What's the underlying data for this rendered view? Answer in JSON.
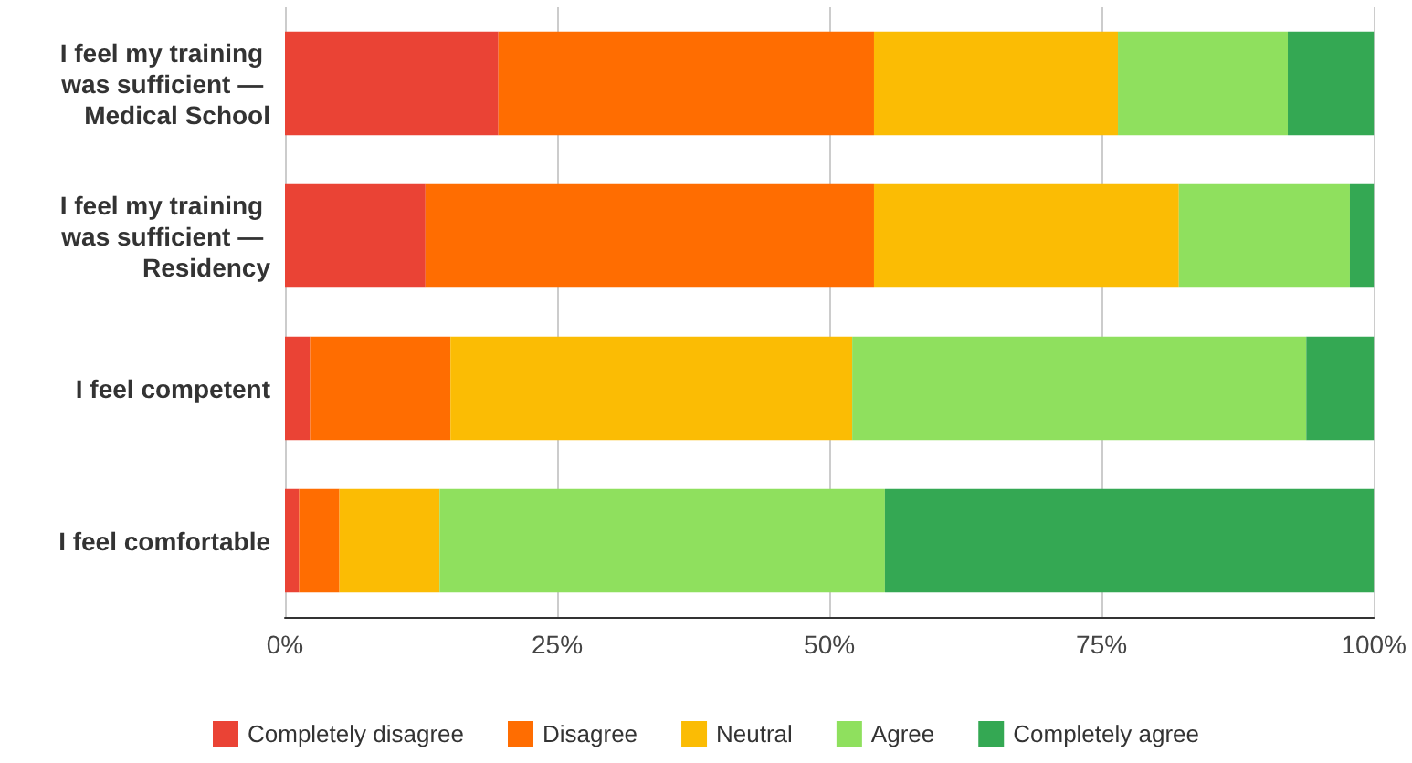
{
  "chart_data": {
    "type": "bar",
    "orientation": "horizontal",
    "stacked": true,
    "categories": [
      "I feel my training was sufficient — Medical School",
      "I feel my training was sufficient — Residency",
      "I feel competent",
      "I feel comfortable"
    ],
    "series": [
      {
        "name": "Completely disagree",
        "color": "#ea4335",
        "values": [
          19.6,
          12.9,
          2.3,
          1.3
        ]
      },
      {
        "name": "Disagree",
        "color": "#ff6d01",
        "values": [
          34.5,
          41.2,
          12.9,
          3.7
        ]
      },
      {
        "name": "Neutral",
        "color": "#fbbc04",
        "values": [
          22.4,
          28.0,
          36.9,
          9.2
        ]
      },
      {
        "name": "Agree",
        "color": "#8fe05e",
        "values": [
          15.6,
          15.7,
          41.7,
          40.9
        ]
      },
      {
        "name": "Completely agree",
        "color": "#34a853",
        "values": [
          7.9,
          2.2,
          6.2,
          44.9
        ]
      }
    ],
    "xlim": [
      0,
      100
    ],
    "xticks": [
      {
        "value": 0,
        "label": "0%"
      },
      {
        "value": 25,
        "label": "25%"
      },
      {
        "value": 50,
        "label": "50%"
      },
      {
        "value": 75,
        "label": "75%"
      },
      {
        "value": 100,
        "label": "100%"
      }
    ],
    "grid": "x",
    "legend": "bottom"
  }
}
